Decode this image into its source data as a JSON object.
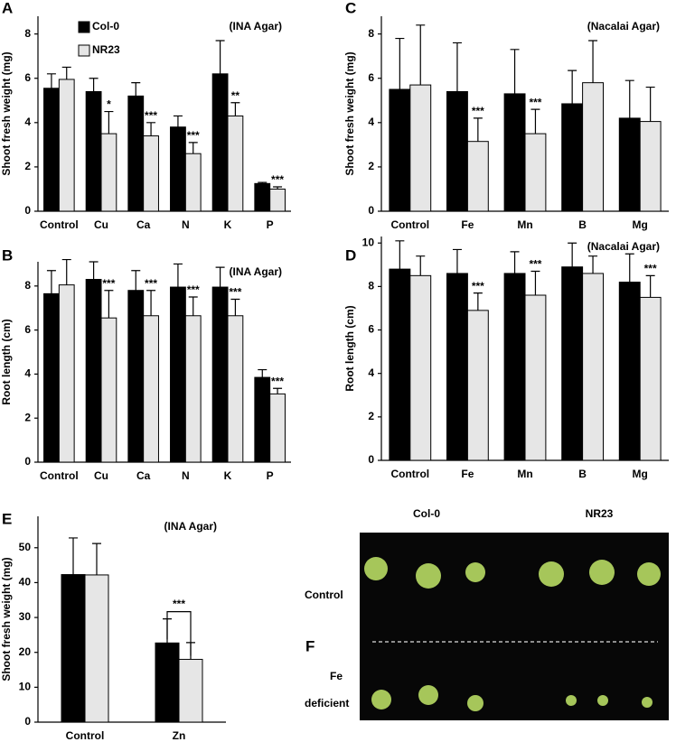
{
  "chart_data": [
    {
      "type": "bar",
      "panel": "A",
      "note": "(INA Agar)",
      "ylabel": "Shoot fresh weight  (mg)",
      "categories": [
        "Control",
        "Cu",
        "Ca",
        "N",
        "K",
        "P"
      ],
      "series": [
        {
          "name": "Col-0",
          "color": "#000000",
          "values": [
            5.55,
            5.4,
            5.2,
            3.8,
            6.2,
            1.25
          ],
          "errors": [
            0.65,
            0.6,
            0.6,
            0.5,
            1.5,
            0.05
          ]
        },
        {
          "name": "NR23",
          "color": "#e6e6e6",
          "values": [
            5.95,
            3.5,
            3.4,
            2.6,
            4.3,
            1.0
          ],
          "errors": [
            0.55,
            1.0,
            0.6,
            0.5,
            0.6,
            0.1
          ],
          "significance": [
            null,
            "*",
            "***",
            "***",
            "**",
            "***"
          ]
        }
      ],
      "ylim": [
        0,
        8.8
      ],
      "yticks": [
        0,
        2,
        4,
        6,
        8
      ],
      "legend": "upper left"
    },
    {
      "type": "bar",
      "panel": "B",
      "note": "(INA Agar)",
      "ylabel": "Root length  (cm)",
      "categories": [
        "Control",
        "Cu",
        "Ca",
        "N",
        "K",
        "P"
      ],
      "series": [
        {
          "color": "#000000",
          "values": [
            7.65,
            8.3,
            7.8,
            7.95,
            7.95,
            3.85
          ],
          "errors": [
            1.05,
            0.8,
            0.9,
            1.05,
            0.9,
            0.35
          ]
        },
        {
          "color": "#e6e6e6",
          "values": [
            8.05,
            6.55,
            6.65,
            6.65,
            6.65,
            3.1
          ],
          "errors": [
            1.15,
            1.25,
            1.15,
            0.85,
            0.75,
            0.25
          ],
          "significance": [
            null,
            "***",
            "***",
            "***",
            "***",
            "***"
          ]
        }
      ],
      "ylim": [
        0,
        9.1
      ],
      "yticks": [
        0,
        2,
        4,
        6,
        8
      ]
    },
    {
      "type": "bar",
      "panel": "C",
      "note": "(Nacalai Agar)",
      "ylabel": "Shoot fresh weight  (mg)",
      "categories": [
        "Control",
        "Fe",
        "Mn",
        "B",
        "Mg"
      ],
      "series": [
        {
          "color": "#000000",
          "values": [
            5.5,
            5.4,
            5.3,
            4.85,
            4.2
          ],
          "errors": [
            2.3,
            2.2,
            2.0,
            1.5,
            1.7
          ]
        },
        {
          "color": "#e6e6e6",
          "values": [
            5.7,
            3.15,
            3.5,
            5.8,
            4.05
          ],
          "errors": [
            2.7,
            1.05,
            1.1,
            1.9,
            1.55
          ],
          "significance": [
            null,
            "***",
            "***",
            null,
            null
          ]
        }
      ],
      "ylim": [
        0,
        8.8
      ],
      "yticks": [
        0,
        2,
        4,
        6,
        8
      ]
    },
    {
      "type": "bar",
      "panel": "D",
      "note": "(Nacalai Agar)",
      "ylabel": "Root length  (cm)",
      "categories": [
        "Control",
        "Fe",
        "Mn",
        "B",
        "Mg"
      ],
      "series": [
        {
          "color": "#000000",
          "values": [
            8.8,
            8.6,
            8.6,
            8.9,
            8.2
          ],
          "errors": [
            1.3,
            1.1,
            1.0,
            1.1,
            1.3
          ]
        },
        {
          "color": "#e6e6e6",
          "values": [
            8.5,
            6.9,
            7.6,
            8.6,
            7.5
          ],
          "errors": [
            0.9,
            0.8,
            1.1,
            0.8,
            1.0
          ],
          "significance": [
            null,
            "***",
            "***",
            null,
            "***"
          ]
        }
      ],
      "ylim": [
        0,
        10.3
      ],
      "yticks": [
        0,
        2,
        4,
        6,
        8,
        10
      ]
    },
    {
      "type": "bar",
      "panel": "E",
      "note": "(INA Agar)",
      "ylabel": "Shoot fresh weight  (mg)",
      "categories": [
        "Control",
        "Zn"
      ],
      "series": [
        {
          "color": "#000000",
          "values": [
            42.3,
            22.7
          ],
          "errors": [
            10.5,
            6.9
          ]
        },
        {
          "color": "#e6e6e6",
          "values": [
            42.2,
            18.0
          ],
          "errors": [
            9.0,
            4.8
          ],
          "significance": [
            null,
            "***"
          ]
        }
      ],
      "ylim": [
        0,
        59
      ],
      "yticks": [
        0,
        10,
        20,
        30,
        40,
        50
      ],
      "bracket": true
    }
  ],
  "photo_panel": {
    "panel": "F",
    "columns": [
      "Col-0",
      "NR23"
    ],
    "rows": [
      "Control",
      "Fe",
      "deficient"
    ]
  }
}
